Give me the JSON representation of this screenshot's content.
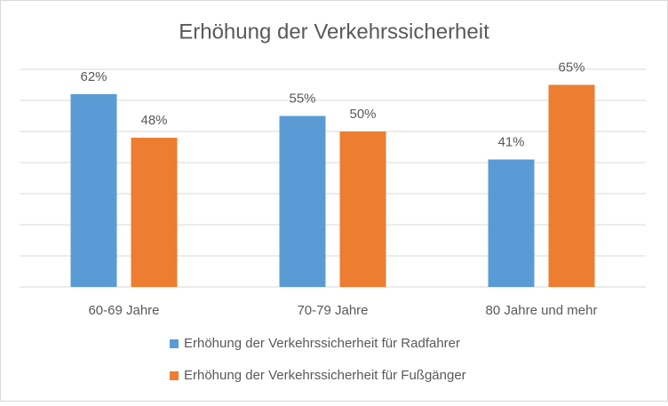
{
  "chart_data": {
    "type": "bar",
    "title": "Erhöhung der Verkehrssicherheit",
    "categories": [
      "60-69 Jahre",
      "70-79 Jahre",
      "80 Jahre und mehr"
    ],
    "series": [
      {
        "name": "Erhöhung der Verkehrssicherheit für Radfahrer",
        "color": "#5b9bd5",
        "values": [
          62,
          55,
          41
        ],
        "value_labels": [
          "62%",
          "55%",
          "41%"
        ]
      },
      {
        "name": "Erhöhung der Verkehrssicherheit für Fußgänger",
        "color": "#ed7d31",
        "values": [
          48,
          50,
          65
        ],
        "value_labels": [
          "48%",
          "50%",
          "65%"
        ]
      }
    ],
    "ylim": [
      0,
      70
    ],
    "yticks": [
      0,
      10,
      20,
      30,
      40,
      50,
      60,
      70
    ],
    "grid": true
  }
}
